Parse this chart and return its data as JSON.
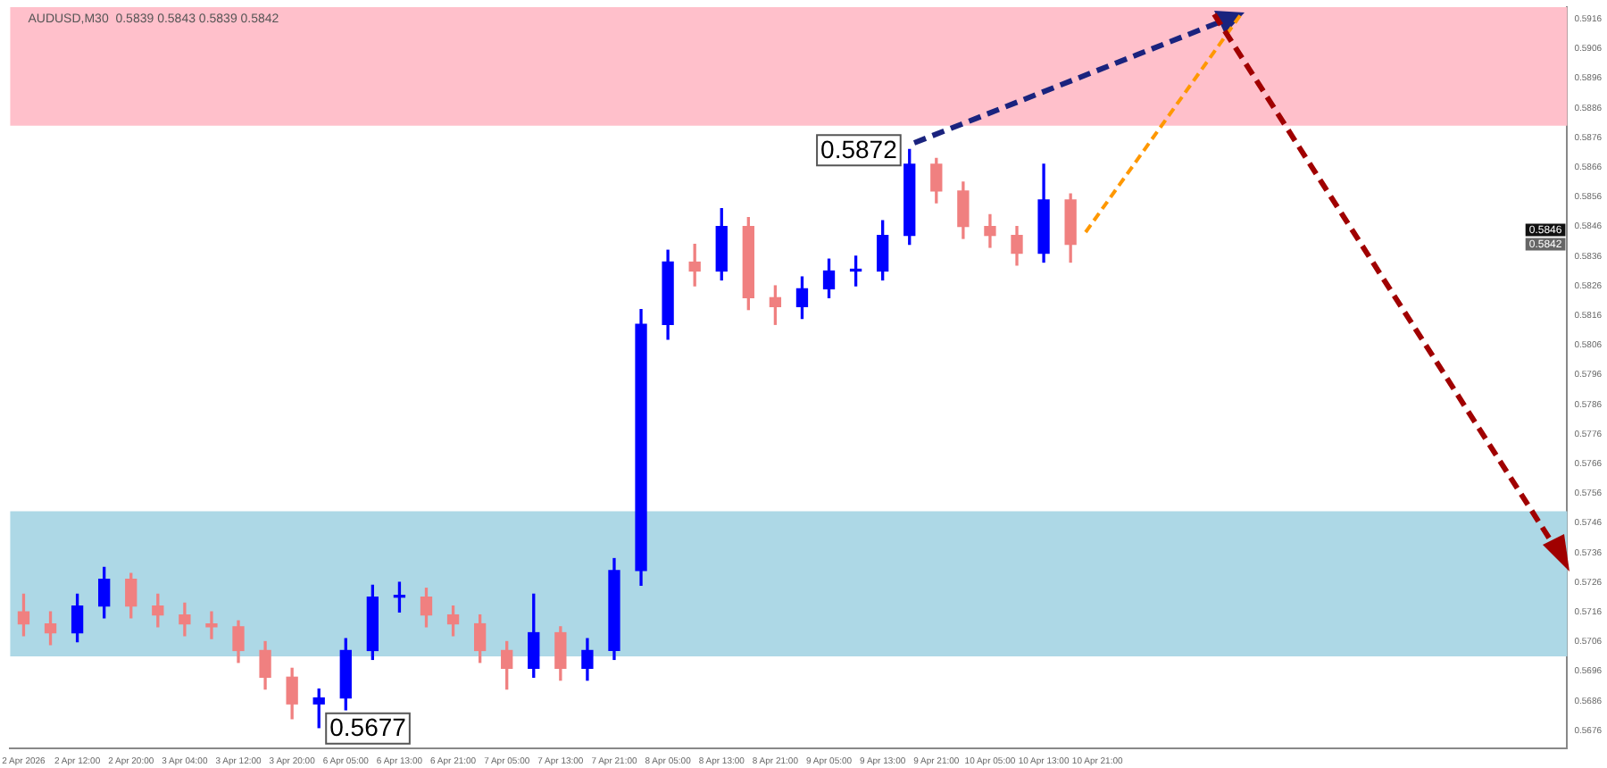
{
  "chart_data": {
    "type": "candlestick",
    "title": "AUDUSD,M30  0.5839 0.5843 0.5839 0.5842",
    "categories": [
      "2 Apr 2026",
      null,
      "2 Apr 12:00",
      null,
      "2 Apr 20:00",
      null,
      "3 Apr 04:00",
      null,
      "3 Apr 12:00",
      null,
      "3 Apr 20:00",
      null,
      "6 Apr 05:00",
      null,
      "6 Apr 13:00",
      null,
      "6 Apr 21:00",
      null,
      "7 Apr 05:00",
      null,
      "7 Apr 13:00",
      null,
      "7 Apr 21:00",
      null,
      "8 Apr 05:00",
      null,
      "8 Apr 13:00",
      null,
      "8 Apr 21:00",
      null,
      "9 Apr 05:00",
      null,
      "9 Apr 13:00",
      null,
      "9 Apr 21:00",
      null,
      "10 Apr 05:00",
      null,
      "10 Apr 13:00",
      null,
      "10 Apr 21:00",
      null,
      null,
      null,
      null,
      null,
      null,
      null,
      null,
      null,
      null,
      null,
      null,
      null,
      null,
      null,
      null,
      null
    ],
    "ohlc": [
      [
        0.5716,
        0.5722,
        0.5708,
        0.5712
      ],
      [
        0.5712,
        0.5716,
        0.5705,
        0.5709
      ],
      [
        0.5709,
        0.5722,
        0.5706,
        0.5718
      ],
      [
        0.5718,
        0.5731,
        0.5714,
        0.5727
      ],
      [
        0.5727,
        0.5729,
        0.5714,
        0.5718
      ],
      [
        0.5718,
        0.5722,
        0.5711,
        0.5715
      ],
      [
        0.5715,
        0.5719,
        0.5708,
        0.5712
      ],
      [
        0.5712,
        0.5716,
        0.5707,
        0.5711
      ],
      [
        0.5711,
        0.5713,
        0.5699,
        0.5703
      ],
      [
        0.5703,
        0.5706,
        0.569,
        0.5694
      ],
      [
        0.5694,
        0.5697,
        0.568,
        0.5685
      ],
      [
        0.5685,
        0.569,
        0.5677,
        0.5687
      ],
      [
        0.5687,
        0.5707,
        0.5683,
        0.5703
      ],
      [
        0.5703,
        0.5725,
        0.57,
        0.5721
      ],
      [
        0.5721,
        0.5726,
        0.5716,
        0.5721
      ],
      [
        0.5721,
        0.5724,
        0.5711,
        0.5715
      ],
      [
        0.5715,
        0.5718,
        0.5708,
        0.5712
      ],
      [
        0.5712,
        0.5715,
        0.5699,
        0.5703
      ],
      [
        0.5703,
        0.5706,
        0.569,
        0.5697
      ],
      [
        0.5697,
        0.5722,
        0.5694,
        0.5709
      ],
      [
        0.5709,
        0.5711,
        0.5693,
        0.5697
      ],
      [
        0.5697,
        0.5707,
        0.5693,
        0.5703
      ],
      [
        0.5703,
        0.5734,
        0.57,
        0.573
      ],
      [
        0.573,
        0.5818,
        0.5725,
        0.5813
      ],
      [
        0.5813,
        0.5838,
        0.5808,
        0.5834
      ],
      [
        0.5834,
        0.584,
        0.5826,
        0.5831
      ],
      [
        0.5831,
        0.5852,
        0.5828,
        0.5846
      ],
      [
        0.5846,
        0.5849,
        0.5818,
        0.5822
      ],
      [
        0.5822,
        0.5826,
        0.5813,
        0.5819
      ],
      [
        0.5819,
        0.5829,
        0.5815,
        0.5825
      ],
      [
        0.5825,
        0.5835,
        0.5822,
        0.5831
      ],
      [
        0.5831,
        0.5836,
        0.5826,
        0.5831
      ],
      [
        0.5831,
        0.5848,
        0.5828,
        0.5843
      ],
      [
        0.5843,
        0.5872,
        0.584,
        0.5867
      ],
      [
        0.5867,
        0.5869,
        0.5854,
        0.5858
      ],
      [
        0.5858,
        0.5861,
        0.5842,
        0.5846
      ],
      [
        0.5846,
        0.585,
        0.5839,
        0.5843
      ],
      [
        0.5843,
        0.5846,
        0.5833,
        0.5837
      ],
      [
        0.5837,
        0.5867,
        0.5834,
        0.5855
      ],
      [
        0.5855,
        0.5857,
        0.5834,
        0.584
      ],
      null,
      null,
      null,
      null,
      null,
      null,
      null,
      null,
      null,
      null,
      null,
      null,
      null,
      null,
      null,
      null,
      null,
      null
    ],
    "colors": [
      "#f08080",
      "#f08080",
      "#0000ff",
      "#0000ff",
      "#f08080",
      "#f08080",
      "#f08080",
      "#f08080",
      "#f08080",
      "#f08080",
      "#f08080",
      "#0000ff",
      "#0000ff",
      "#0000ff",
      "#0000ff",
      "#f08080",
      "#f08080",
      "#f08080",
      "#f08080",
      "#0000ff",
      "#f08080",
      "#0000ff",
      "#0000ff",
      "#0000ff",
      "#0000ff",
      "#f08080",
      "#0000ff",
      "#f08080",
      "#f08080",
      "#0000ff",
      "#0000ff",
      "#0000ff",
      "#0000ff",
      "#0000ff",
      "#f08080",
      "#f08080",
      "#f08080",
      "#f08080",
      "#0000ff",
      "#f08080",
      null,
      null,
      null,
      null,
      null,
      null,
      null,
      null,
      null,
      null,
      null,
      null,
      null,
      null,
      null,
      null,
      null,
      null
    ],
    "ylim": [
      0.567,
      0.592
    ],
    "yticks": [
      0.5676,
      0.5686,
      0.5696,
      0.5706,
      0.5716,
      0.5726,
      0.5736,
      0.5746,
      0.5756,
      0.5766,
      0.5776,
      0.5786,
      0.5796,
      0.5806,
      0.5816,
      0.5826,
      0.5836,
      0.5846,
      0.5856,
      0.5866,
      0.5876,
      0.5886,
      0.5896,
      0.5906,
      0.5916
    ],
    "bands": [
      {
        "axis": "y",
        "from": 0.588,
        "to": 0.592,
        "color": "#ffc0cb"
      },
      {
        "axis": "y",
        "from": 0.5701,
        "to": 0.575,
        "color": "#add8e6"
      }
    ],
    "annotations": [
      "0.5872",
      "0.5677",
      "0.5846",
      "0.5842"
    ],
    "grid": false,
    "legend": false
  }
}
